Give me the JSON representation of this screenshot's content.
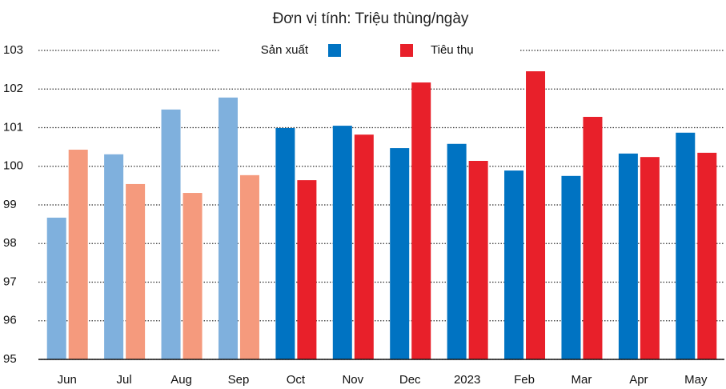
{
  "chart_data": {
    "type": "bar",
    "subtitle": "Đơn vị tính: Triệu thùng/ngày",
    "categories": [
      "Jun",
      "Jul",
      "Aug",
      "Sep",
      "Oct",
      "Nov",
      "Dec",
      "2023",
      "Feb",
      "Mar",
      "Apr",
      "May"
    ],
    "series": [
      {
        "name": "Sản xuất",
        "color": "#0073c2",
        "colors": [
          "#7fb0dd",
          "#7fb0dd",
          "#7fb0dd",
          "#7fb0dd",
          "#0073c2",
          "#0073c2",
          "#0073c2",
          "#0073c2",
          "#0073c2",
          "#0073c2",
          "#0073c2",
          "#0073c2"
        ],
        "values": [
          98.67,
          100.31,
          101.47,
          101.78,
          100.99,
          101.05,
          100.47,
          100.58,
          99.89,
          99.75,
          100.33,
          100.87
        ]
      },
      {
        "name": "Tiêu thụ",
        "color": "#e8202a",
        "colors": [
          "#f59a7d",
          "#f59a7d",
          "#f59a7d",
          "#f59a7d",
          "#e8202a",
          "#e8202a",
          "#e8202a",
          "#e8202a",
          "#e8202a",
          "#e8202a",
          "#e8202a",
          "#e8202a"
        ],
        "values": [
          100.43,
          99.54,
          99.31,
          99.77,
          99.64,
          100.82,
          102.17,
          100.14,
          102.46,
          101.28,
          100.24,
          100.35
        ]
      }
    ],
    "ylim": [
      95,
      103
    ],
    "yticks": [
      95,
      96,
      97,
      98,
      99,
      100,
      101,
      102,
      103
    ],
    "grid": true
  }
}
